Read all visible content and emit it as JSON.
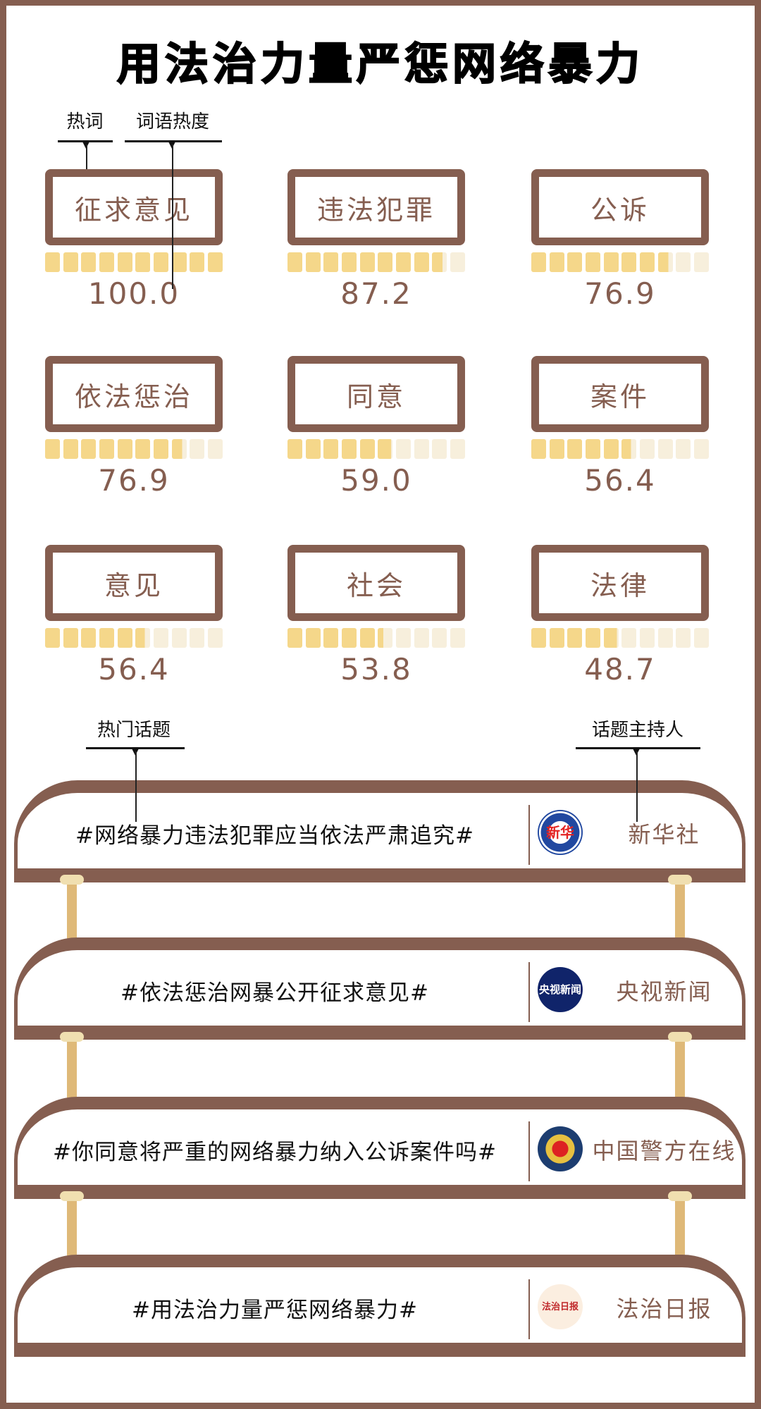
{
  "title": "用法治力量严惩网络暴力",
  "legend": {
    "hot_word": "热词",
    "word_heat": "词语热度",
    "hot_topic": "热门话题",
    "topic_host": "话题主持人"
  },
  "colors": {
    "brown": "#855e50",
    "bar_fill": "#f5d78a",
    "bar_empty": "#f7efdc",
    "post": "#dfb978"
  },
  "words": [
    {
      "word": "征求意见",
      "heat": "100.0",
      "value": 100.0
    },
    {
      "word": "违法犯罪",
      "heat": "87.2",
      "value": 87.2
    },
    {
      "word": "公诉",
      "heat": "76.9",
      "value": 76.9
    },
    {
      "word": "依法惩治",
      "heat": "76.9",
      "value": 76.9
    },
    {
      "word": "同意",
      "heat": "59.0",
      "value": 59.0
    },
    {
      "word": "案件",
      "heat": "56.4",
      "value": 56.4
    },
    {
      "word": "意见",
      "heat": "56.4",
      "value": 56.4
    },
    {
      "word": "社会",
      "heat": "53.8",
      "value": 53.8
    },
    {
      "word": "法律",
      "heat": "48.7",
      "value": 48.7
    }
  ],
  "topics": [
    {
      "topic": "#网络暴力违法犯罪应当依法严肃追究#",
      "host": "新华社",
      "logo": "xinhua-logo",
      "logo_text": "新华"
    },
    {
      "topic": "#依法惩治网暴公开征求意见#",
      "host": "央视新闻",
      "logo": "cctv-news-logo",
      "logo_text": "央视新闻"
    },
    {
      "topic": "#你同意将严重的网络暴力纳入公诉案件吗#",
      "host": "中国警方在线",
      "logo": "police-emblem-logo",
      "logo_text": "警"
    },
    {
      "topic": "#用法治力量严惩网络暴力#",
      "host": "法治日报",
      "logo": "legal-daily-logo",
      "logo_text": "法治日报"
    }
  ]
}
